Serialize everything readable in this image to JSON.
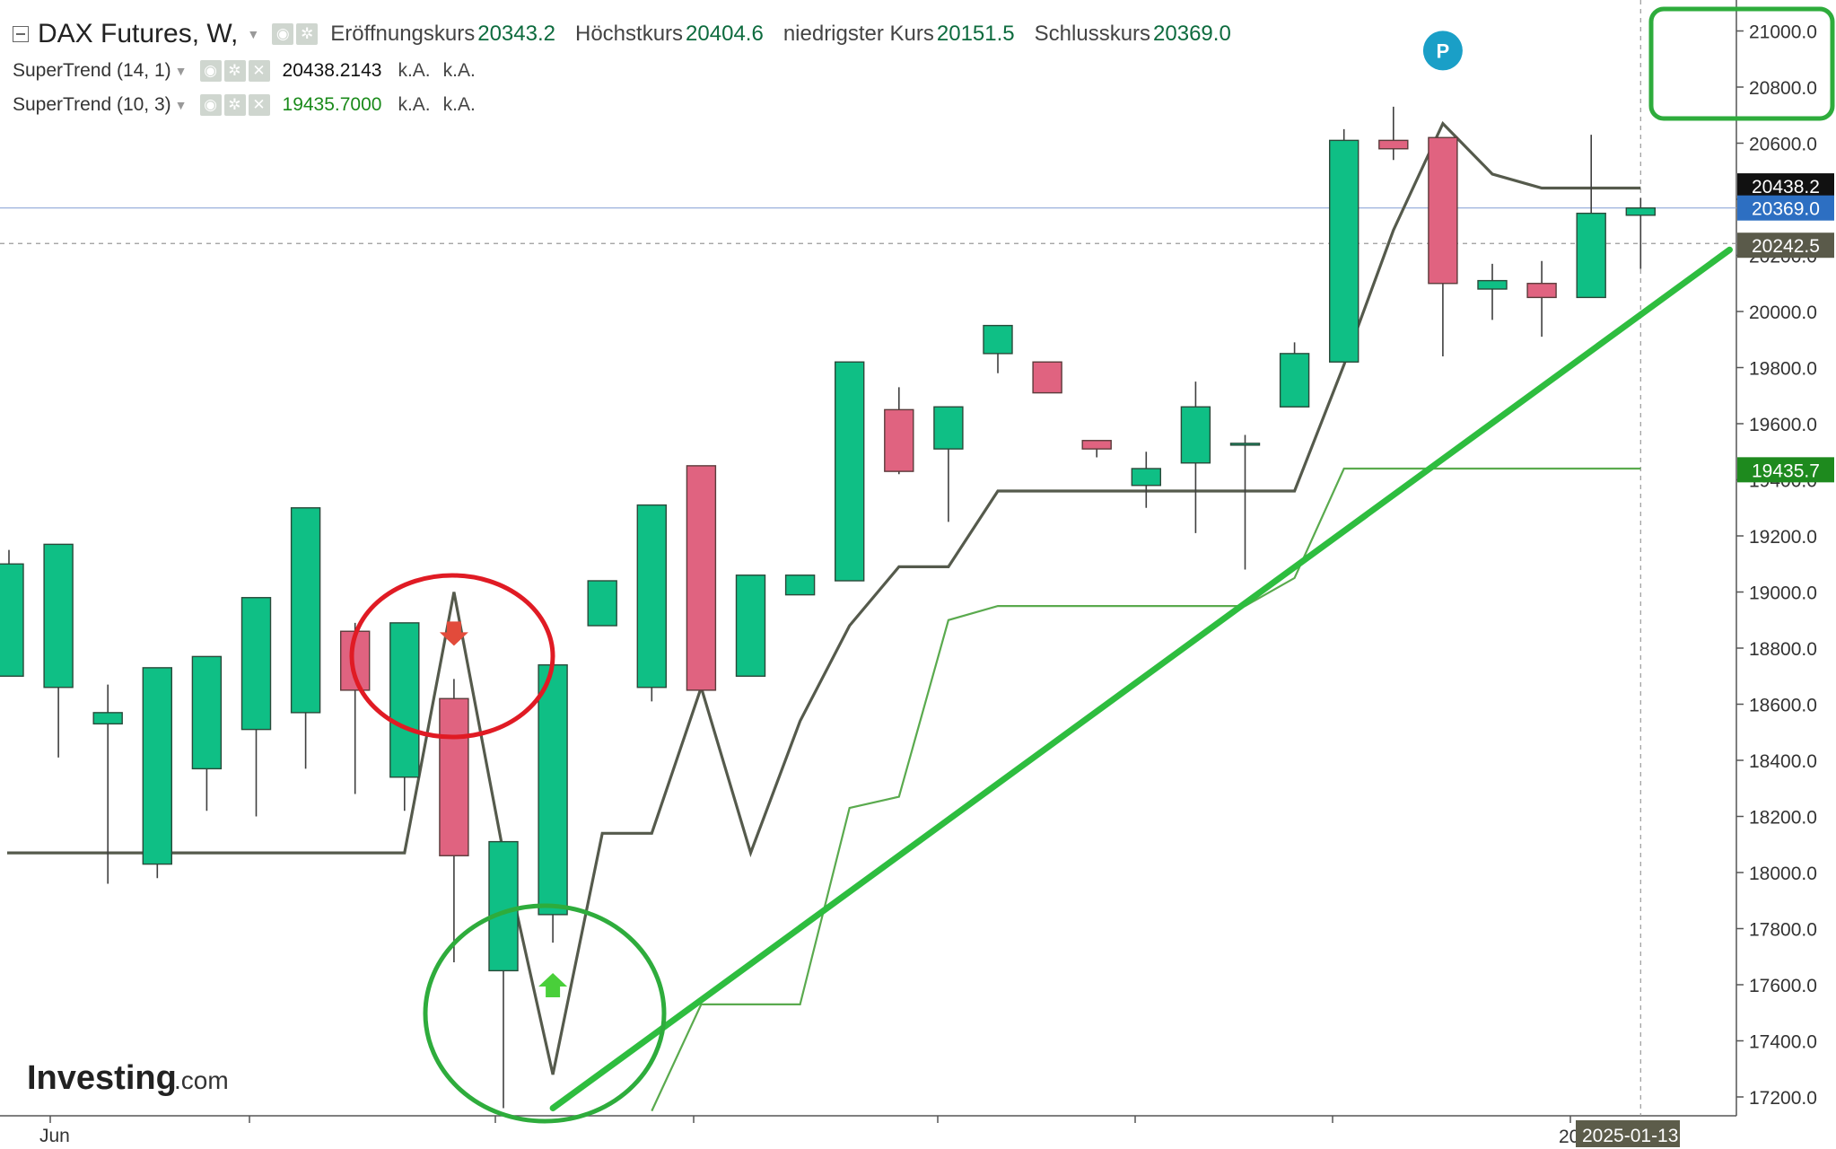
{
  "header": {
    "symbol": "DAX Futures, W,",
    "ohlc": [
      {
        "label": "Eröffnungskurs",
        "value": "20343.2"
      },
      {
        "label": "Höchstkurs",
        "value": "20404.6"
      },
      {
        "label": "niedrigster Kurs",
        "value": "20151.5"
      },
      {
        "label": "Schlusskurs",
        "value": "20369.0"
      }
    ]
  },
  "indicators": [
    {
      "label": "SuperTrend (14, 1)",
      "value": "20438.2143",
      "na1": "k.A.",
      "na2": "k.A.",
      "color": "#111111"
    },
    {
      "label": "SuperTrend (10, 3)",
      "value": "19435.7000",
      "na1": "k.A.",
      "na2": "k.A.",
      "color": "#1a8a1a"
    }
  ],
  "colors": {
    "up": "#0fbf85",
    "down": "#e06380",
    "candle_outline": "#5b3b3b",
    "supertrend_14": "#555a4c",
    "supertrend_10": "#5aaa4e",
    "trendline": "#2ebd3f",
    "circle_red": "#e01b24",
    "circle_green": "#2eac3c",
    "axis_text": "#333333",
    "last_price": "#2d6fc2"
  },
  "price_labels": [
    {
      "value": "20438.2",
      "color": "#111111"
    },
    {
      "value": "20369.0",
      "color": "#2d6fc2"
    },
    {
      "value": "20242.5",
      "color": "#5a5a4a"
    },
    {
      "value": "19435.7",
      "color": "#1e8a1e"
    }
  ],
  "date_labels": {
    "x_first": "Jun",
    "cursor": "2025-01-13",
    "cursor_prefix": "20"
  },
  "markers": {
    "pivot": "P",
    "sell_arrow": "down-arrow-icon",
    "buy_arrow": "up-arrow-icon"
  },
  "watermark": {
    "brand": "Investing",
    "suffix": ".com"
  },
  "chart_data": {
    "type": "candlestick",
    "title": "DAX Futures, W,",
    "y_ticks": [
      17200,
      17400,
      17600,
      17800,
      18000,
      18200,
      18400,
      18600,
      18800,
      19000,
      19200,
      19400,
      19600,
      19800,
      20000,
      20200,
      20400,
      20600,
      20800,
      21000
    ],
    "ylim": [
      17130,
      21100
    ],
    "x_tick_labels": [
      "Jun"
    ],
    "candles": [
      {
        "o": 18700,
        "h": 19150,
        "l": 18700,
        "c": 19100
      },
      {
        "o": 18660,
        "h": 19170,
        "l": 18410,
        "c": 19170
      },
      {
        "o": 18530,
        "h": 18670,
        "l": 17960,
        "c": 18570
      },
      {
        "o": 18030,
        "h": 18730,
        "l": 17980,
        "c": 18730
      },
      {
        "o": 18370,
        "h": 18770,
        "l": 18220,
        "c": 18770
      },
      {
        "o": 18510,
        "h": 18980,
        "l": 18200,
        "c": 18980
      },
      {
        "o": 18570,
        "h": 19300,
        "l": 18370,
        "c": 19300
      },
      {
        "o": 18860,
        "h": 18890,
        "l": 18280,
        "c": 18650
      },
      {
        "o": 18340,
        "h": 18890,
        "l": 18220,
        "c": 18890
      },
      {
        "o": 18620,
        "h": 18690,
        "l": 17680,
        "c": 18060
      },
      {
        "o": 17650,
        "h": 18110,
        "l": 17160,
        "c": 18110
      },
      {
        "o": 17850,
        "h": 18740,
        "l": 17750,
        "c": 18740
      },
      {
        "o": 18880,
        "h": 19040,
        "l": 18880,
        "c": 19040
      },
      {
        "o": 18660,
        "h": 19310,
        "l": 18610,
        "c": 19310
      },
      {
        "o": 19450,
        "h": 19450,
        "l": 18650,
        "c": 18650
      },
      {
        "o": 18700,
        "h": 19060,
        "l": 18700,
        "c": 19060
      },
      {
        "o": 18990,
        "h": 19060,
        "l": 18990,
        "c": 19060
      },
      {
        "o": 19040,
        "h": 19820,
        "l": 19040,
        "c": 19820
      },
      {
        "o": 19650,
        "h": 19730,
        "l": 19420,
        "c": 19430
      },
      {
        "o": 19510,
        "h": 19660,
        "l": 19250,
        "c": 19660
      },
      {
        "o": 19850,
        "h": 19950,
        "l": 19780,
        "c": 19950
      },
      {
        "o": 19820,
        "h": 19820,
        "l": 19710,
        "c": 19710
      },
      {
        "o": 19540,
        "h": 19540,
        "l": 19480,
        "c": 19510
      },
      {
        "o": 19380,
        "h": 19500,
        "l": 19300,
        "c": 19440
      },
      {
        "o": 19460,
        "h": 19750,
        "l": 19210,
        "c": 19660
      },
      {
        "o": 19530,
        "h": 19560,
        "l": 19080,
        "c": 19530
      },
      {
        "o": 19660,
        "h": 19890,
        "l": 19660,
        "c": 19850
      },
      {
        "o": 19820,
        "h": 20650,
        "l": 19820,
        "c": 20610
      },
      {
        "o": 20610,
        "h": 20730,
        "l": 20540,
        "c": 20580
      },
      {
        "o": 20620,
        "h": 20620,
        "l": 19840,
        "c": 20100
      },
      {
        "o": 20080,
        "h": 20170,
        "l": 19970,
        "c": 20110
      },
      {
        "o": 20100,
        "h": 20180,
        "l": 19910,
        "c": 20050
      },
      {
        "o": 20050,
        "h": 20630,
        "l": 20050,
        "c": 20350
      },
      {
        "o": 20343.2,
        "h": 20404.6,
        "l": 20151.5,
        "c": 20369.0
      }
    ],
    "series": [
      {
        "name": "SuperTrend (14, 1)",
        "values": [
          18070,
          18070,
          18070,
          18070,
          18070,
          18070,
          18070,
          18070,
          18070,
          19000,
          18070,
          17280,
          18140,
          18140,
          18660,
          18070,
          18540,
          18880,
          19090,
          19090,
          19360,
          19360,
          19360,
          19360,
          19360,
          19360,
          19360,
          19810,
          20290,
          20670,
          20490,
          20440,
          20440,
          20440
        ]
      },
      {
        "name": "SuperTrend (10, 3)",
        "values": [
          null,
          null,
          null,
          null,
          null,
          null,
          null,
          null,
          null,
          null,
          null,
          null,
          null,
          17150,
          17530,
          17530,
          17530,
          18230,
          18270,
          18900,
          18950,
          18950,
          18950,
          18950,
          18950,
          18950,
          19050,
          19440,
          19440,
          19440,
          19440,
          19440,
          19440,
          19440
        ]
      }
    ],
    "annotations": [
      {
        "type": "trendline",
        "from": {
          "index": 11,
          "value": 17160
        },
        "to": {
          "index": 34.8,
          "value": 20220
        }
      },
      {
        "type": "sell-signal",
        "index": 9,
        "value": 18850
      },
      {
        "type": "buy-signal",
        "index": 11,
        "value": 17600
      },
      {
        "type": "pivot",
        "label": "P",
        "index": 29,
        "value": 20850
      }
    ]
  }
}
